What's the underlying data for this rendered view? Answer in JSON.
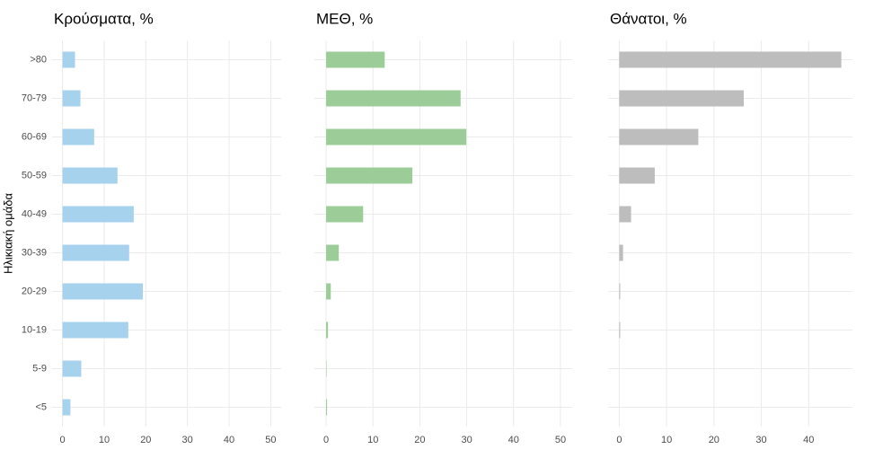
{
  "chart_data": [
    {
      "type": "bar",
      "orientation": "horizontal",
      "title": "Κρούσματα, %",
      "y_label": "Ηλικιακή ομάδα",
      "categories": [
        ">80",
        "70-79",
        "60-69",
        "50-59",
        "40-49",
        "30-39",
        "20-29",
        "10-19",
        "5-9",
        "<5"
      ],
      "values": [
        3.0,
        4.3,
        7.6,
        13.2,
        17.1,
        16.0,
        19.3,
        15.8,
        4.5,
        1.9
      ],
      "color": "#a6d2ee",
      "xlim": [
        -2.5,
        52.5
      ],
      "xticks": [
        0,
        10,
        20,
        30,
        40,
        50
      ],
      "grid": true
    },
    {
      "type": "bar",
      "orientation": "horizontal",
      "title": "ΜΕΘ, %",
      "values": [
        12.5,
        28.7,
        29.9,
        18.4,
        7.9,
        2.7,
        1.0,
        0.4,
        0.1,
        0.2
      ],
      "color": "#9ccc98",
      "xlim": [
        -2.5,
        52.5
      ],
      "xticks": [
        0,
        10,
        20,
        30,
        40,
        50
      ],
      "grid": true
    },
    {
      "type": "bar",
      "orientation": "horizontal",
      "title": "Θάνατοι, %",
      "values": [
        46.9,
        26.3,
        16.7,
        7.5,
        2.5,
        0.8,
        0.2,
        0.2,
        0,
        0
      ],
      "color": "#bdbdbd",
      "xlim": [
        -2.35,
        49.25
      ],
      "xticks": [
        0,
        10,
        20,
        30,
        40
      ],
      "grid": true
    }
  ]
}
